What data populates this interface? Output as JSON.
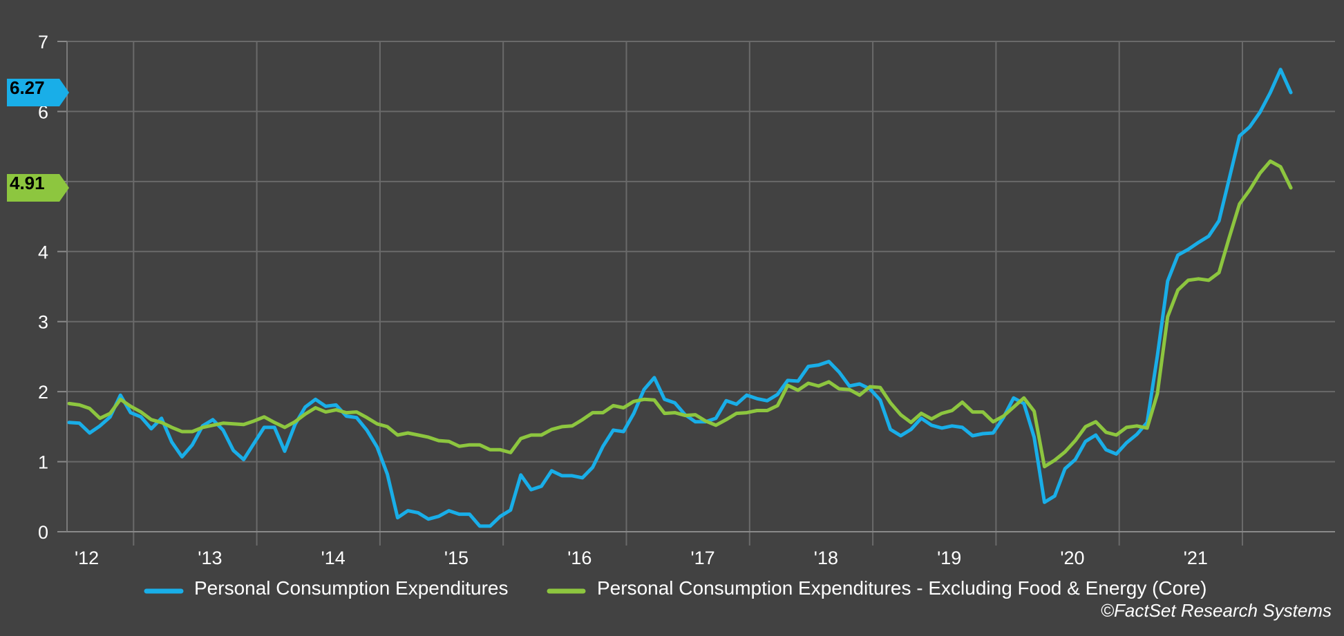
{
  "chart_data": {
    "type": "line",
    "title": "",
    "xlabel": "",
    "ylabel": "",
    "ylim": [
      0,
      7
    ],
    "yticks": [
      "0",
      "1",
      "2",
      "3",
      "4",
      "5",
      "6",
      "7"
    ],
    "xlim": [
      2012.0,
      2022.0
    ],
    "xticks": [
      "'12",
      "'13",
      "'14",
      "'15",
      "'16",
      "'17",
      "'18",
      "'19",
      "'20",
      "'21"
    ],
    "grid": true,
    "legend_position": "bottom",
    "series": [
      {
        "name": "Personal Consumption Expenditures",
        "color": "#19aee8",
        "last_value_label": "6.27",
        "start": 2012.0,
        "step": 0.08333,
        "values": [
          1.56,
          1.55,
          1.41,
          1.51,
          1.64,
          1.95,
          1.7,
          1.64,
          1.47,
          1.62,
          1.28,
          1.07,
          1.24,
          1.51,
          1.6,
          1.45,
          1.16,
          1.03,
          1.26,
          1.49,
          1.49,
          1.15,
          1.53,
          1.78,
          1.89,
          1.79,
          1.81,
          1.65,
          1.63,
          1.45,
          1.21,
          0.82,
          0.2,
          0.3,
          0.27,
          0.18,
          0.22,
          0.3,
          0.25,
          0.25,
          0.08,
          0.08,
          0.22,
          0.31,
          0.81,
          0.6,
          0.65,
          0.87,
          0.8,
          0.8,
          0.77,
          0.92,
          1.22,
          1.45,
          1.43,
          1.69,
          2.03,
          2.2,
          1.89,
          1.84,
          1.67,
          1.57,
          1.57,
          1.62,
          1.87,
          1.82,
          1.95,
          1.9,
          1.87,
          1.96,
          2.16,
          2.15,
          2.36,
          2.38,
          2.43,
          2.28,
          2.08,
          2.11,
          2.04,
          1.88,
          1.46,
          1.37,
          1.46,
          1.62,
          1.52,
          1.48,
          1.51,
          1.49,
          1.37,
          1.4,
          1.41,
          1.63,
          1.91,
          1.83,
          1.35,
          0.42,
          0.51,
          0.9,
          1.03,
          1.29,
          1.38,
          1.17,
          1.11,
          1.27,
          1.39,
          1.56,
          2.51,
          3.58,
          3.95,
          4.03,
          4.13,
          4.22,
          4.44,
          5.04,
          5.65,
          5.78,
          5.99,
          6.27,
          6.6,
          6.27
        ]
      },
      {
        "name": "Personal Consumption Expenditures - Excluding Food & Energy (Core)",
        "color": "#8dc63f",
        "last_value_label": "4.91",
        "start": 2012.0,
        "step": 0.08333,
        "values": [
          1.83,
          1.81,
          1.76,
          1.62,
          1.69,
          1.89,
          1.79,
          1.71,
          1.6,
          1.56,
          1.49,
          1.43,
          1.43,
          1.49,
          1.52,
          1.55,
          1.54,
          1.53,
          1.58,
          1.64,
          1.56,
          1.49,
          1.57,
          1.68,
          1.77,
          1.71,
          1.74,
          1.7,
          1.71,
          1.63,
          1.54,
          1.5,
          1.38,
          1.41,
          1.38,
          1.35,
          1.3,
          1.29,
          1.22,
          1.24,
          1.24,
          1.17,
          1.17,
          1.13,
          1.33,
          1.38,
          1.38,
          1.46,
          1.5,
          1.51,
          1.6,
          1.7,
          1.7,
          1.8,
          1.77,
          1.86,
          1.89,
          1.88,
          1.69,
          1.7,
          1.66,
          1.67,
          1.58,
          1.52,
          1.6,
          1.69,
          1.7,
          1.73,
          1.73,
          1.8,
          2.09,
          2.02,
          2.12,
          2.08,
          2.14,
          2.04,
          2.03,
          1.95,
          2.07,
          2.06,
          1.84,
          1.67,
          1.56,
          1.69,
          1.61,
          1.69,
          1.73,
          1.85,
          1.71,
          1.71,
          1.57,
          1.65,
          1.78,
          1.91,
          1.72,
          0.93,
          1.02,
          1.14,
          1.3,
          1.5,
          1.57,
          1.42,
          1.38,
          1.49,
          1.51,
          1.48,
          1.97,
          3.07,
          3.45,
          3.59,
          3.61,
          3.59,
          3.7,
          4.2,
          4.68,
          4.88,
          5.12,
          5.29,
          5.21,
          4.91
        ]
      }
    ]
  },
  "source": "©FactSet Research Systems"
}
